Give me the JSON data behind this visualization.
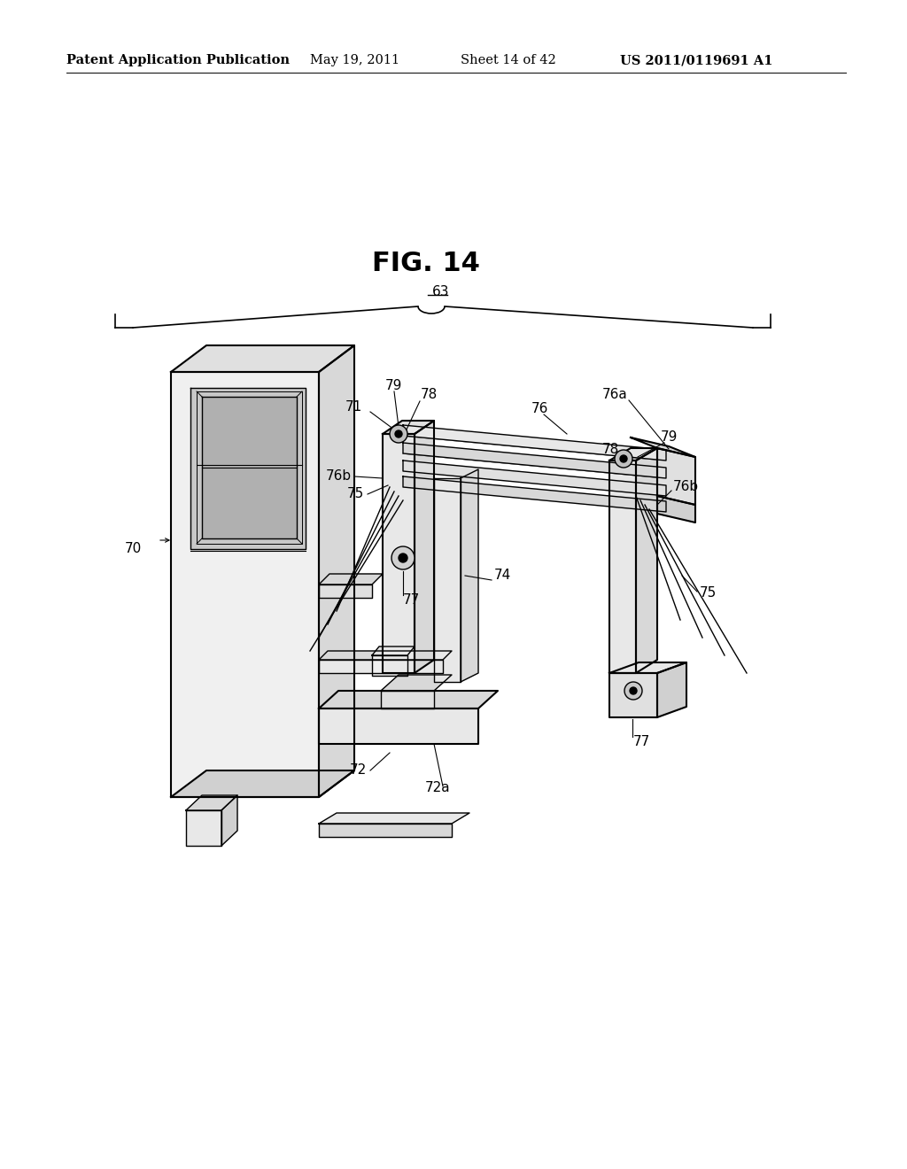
{
  "bg_color": "#ffffff",
  "header_text": "Patent Application Publication",
  "header_date": "May 19, 2011",
  "header_sheet": "Sheet 14 of 42",
  "header_patent": "US 2011/0119691 A1",
  "fig_label": "FIG. 14",
  "bracket_label": "63",
  "line_color": "#000000",
  "text_color": "#000000",
  "font_size_header": 10.5,
  "font_size_fig": 22,
  "font_size_label": 11,
  "gray_light": "#e8e8e8",
  "gray_mid": "#d0d0d0",
  "gray_dark": "#b0b0b0"
}
